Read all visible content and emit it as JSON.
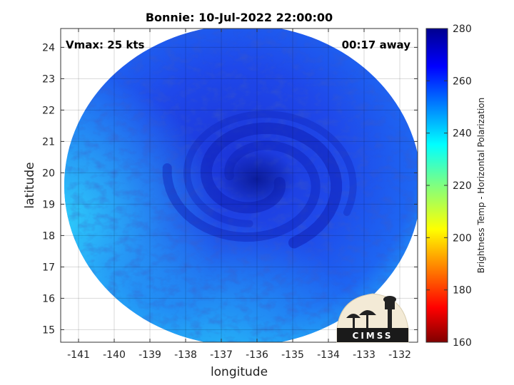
{
  "chart_data": {
    "type": "heatmap",
    "title": "Bonnie: 10-Jul-2022 22:00:00",
    "xlabel": "longitude",
    "ylabel": "latitude",
    "xlim": [
      -141.5,
      -131.5
    ],
    "ylim": [
      14.6,
      24.6
    ],
    "x_ticks": [
      -141,
      -140,
      -139,
      -138,
      -137,
      -136,
      -135,
      -134,
      -133,
      -132
    ],
    "y_ticks": [
      15,
      16,
      17,
      18,
      19,
      20,
      21,
      22,
      23,
      24
    ],
    "grid": true,
    "colorbar": {
      "label": "Brightness Temp - Horizontal Polarization",
      "range": [
        160,
        280
      ],
      "ticks": [
        280,
        260,
        240,
        220,
        200,
        180,
        160
      ],
      "colormap": "jet"
    },
    "annotations": {
      "vmax": "Vmax: 25 kts",
      "time_away": "00:17 away"
    },
    "swath_center": {
      "lon": -136.4,
      "lat": 19.6
    },
    "storm_center": {
      "lon": -136.0,
      "lat": 19.8
    },
    "values": [
      {
        "region": "eye core",
        "brightness_temp": 268
      },
      {
        "region": "spiral bands",
        "brightness_temp": 262
      },
      {
        "region": "inner field",
        "brightness_temp": 255
      },
      {
        "region": "western edge",
        "brightness_temp": 238
      },
      {
        "region": "southern edge",
        "brightness_temp": 245
      }
    ]
  },
  "logo": {
    "text": "CIMSS"
  }
}
